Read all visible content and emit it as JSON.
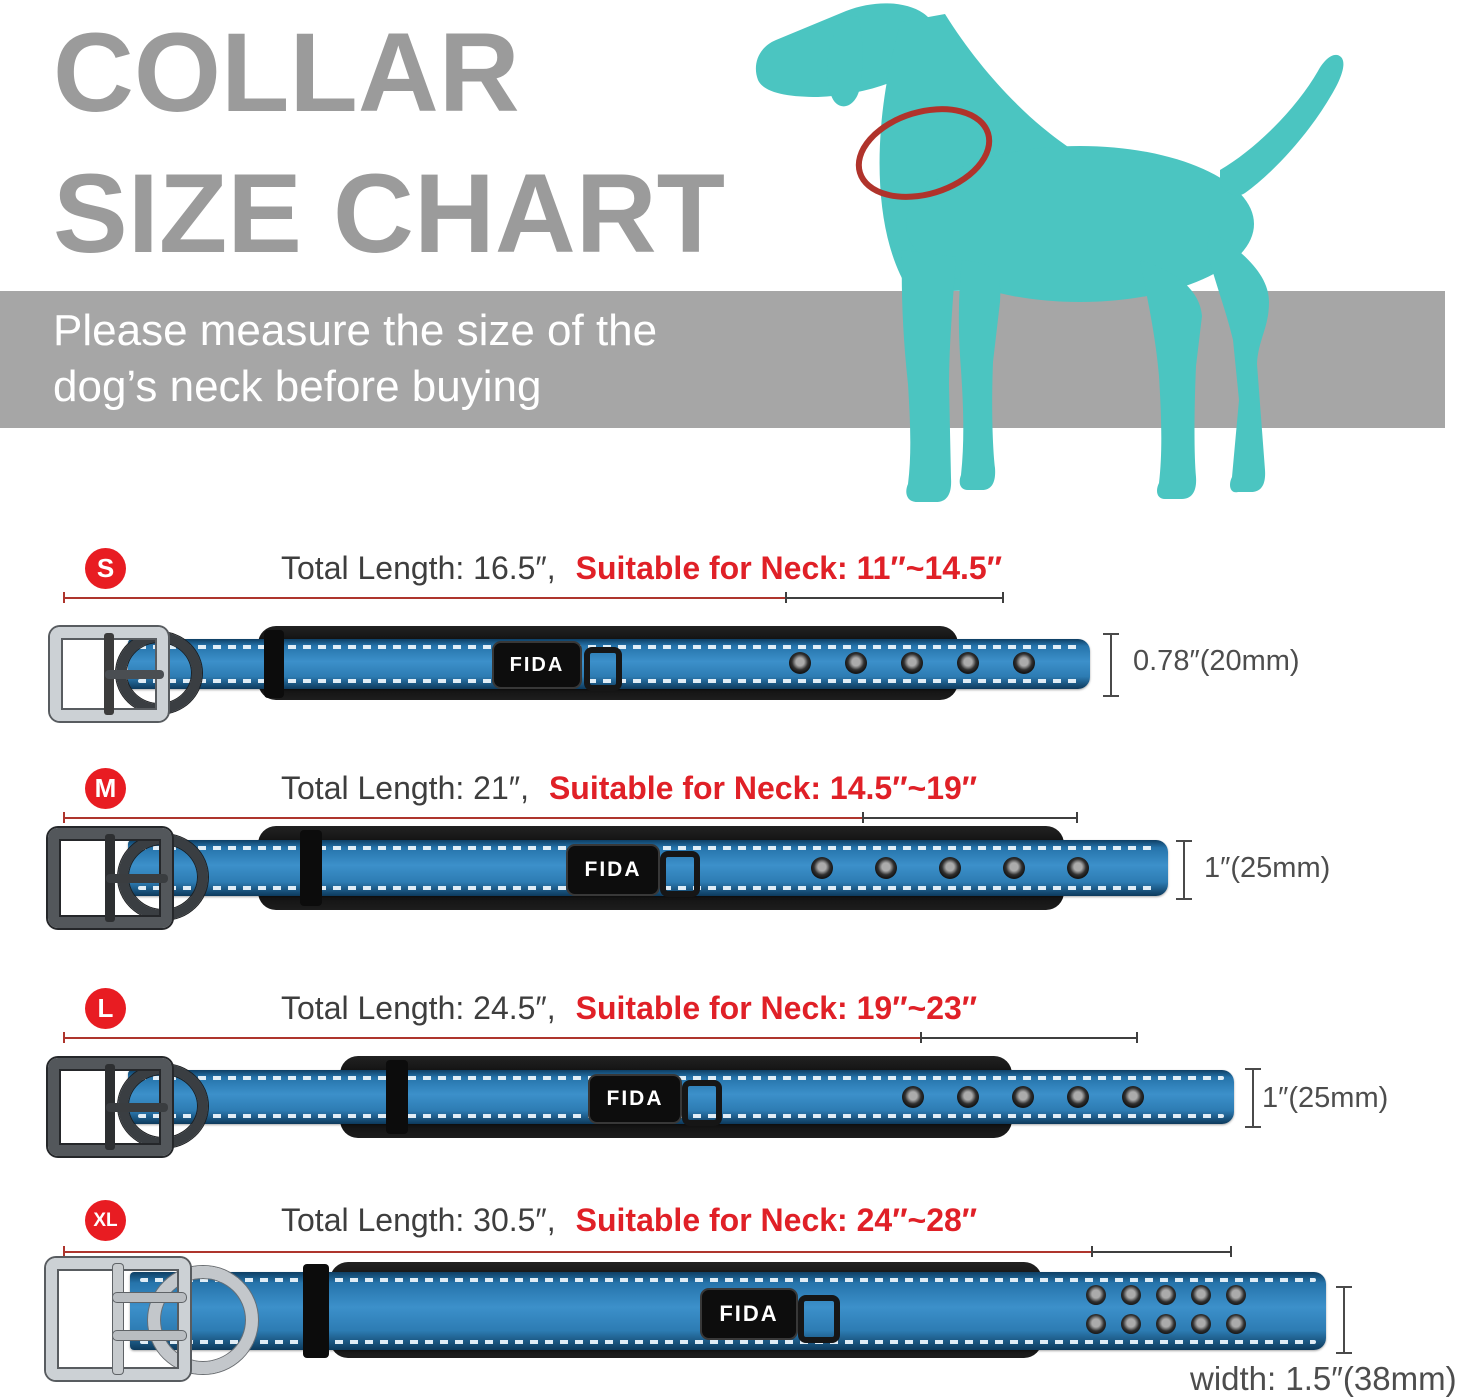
{
  "title": {
    "line1": "COLLAR",
    "line2": "SIZE CHART"
  },
  "banner": {
    "line1": "Please measure the size of the",
    "line2": "dog’s neck before buying"
  },
  "brand": "FIDA",
  "colors": {
    "title_gray": "#9b9b9b",
    "banner_gray": "#a6a6a6",
    "dog_teal": "#4bc5c1",
    "accent_red": "#e02027",
    "badge_red": "#e81c22",
    "strap_blue": "#2d7cb3"
  },
  "sizes": [
    {
      "size": "S",
      "total_length": "Total Length: 16.5″,",
      "neck_range": "Suitable for Neck: 11″~14.5″",
      "width_label": "0.78″(20mm)",
      "grommets": 5
    },
    {
      "size": "M",
      "total_length": "Total Length: 21″,",
      "neck_range": "Suitable for Neck: 14.5″~19″",
      "width_label": "1″(25mm)",
      "grommets": 5
    },
    {
      "size": "L",
      "total_length": "Total Length: 24.5″,",
      "neck_range": "Suitable for Neck: 19″~23″",
      "width_label": "1″(25mm)",
      "grommets": 5
    },
    {
      "size": "XL",
      "total_length": "Total Length: 30.5″,",
      "neck_range": "Suitable for Neck: 24″~28″",
      "width_label": "width: 1.5″(38mm)",
      "grommets": 10
    }
  ]
}
